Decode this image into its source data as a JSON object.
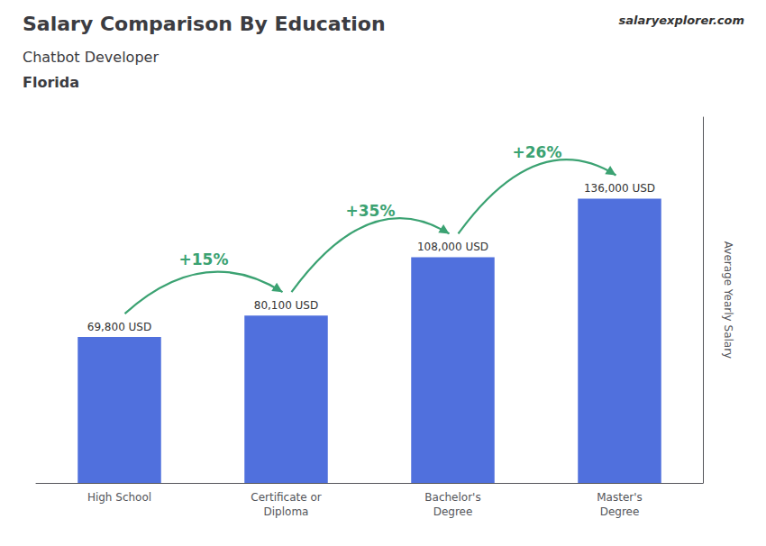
{
  "chart_data": {
    "type": "bar",
    "title": "Salary Comparison By Education",
    "subtitle": [
      "Chatbot Developer",
      "Florida"
    ],
    "website": "salaryexplorer.com",
    "ylabel": "Average Yearly Salary",
    "categories": [
      "High School",
      "Certificate or\nDiploma",
      "Bachelor's\nDegree",
      "Master's\nDegree"
    ],
    "values": [
      69800,
      80100,
      108000,
      136000
    ],
    "value_labels": [
      "69,800 USD",
      "80,100 USD",
      "108,000 USD",
      "136,000 USD"
    ],
    "data_labels": true,
    "annotations": [
      "+15%",
      "+35%",
      "+26%"
    ],
    "ylim": [
      0,
      175000
    ],
    "grid": false,
    "tick_labels": "x"
  }
}
